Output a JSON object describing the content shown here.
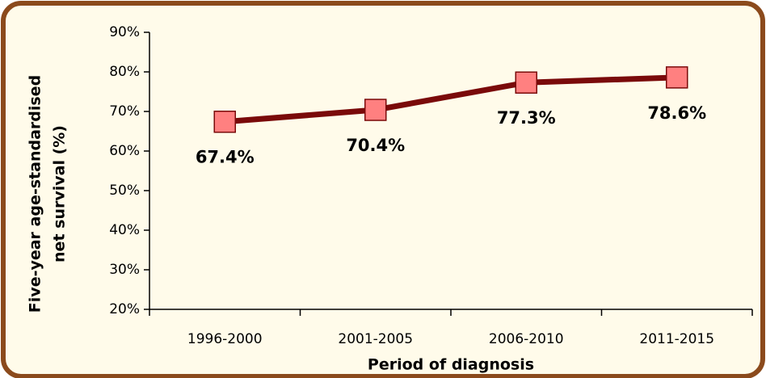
{
  "chart_data": {
    "type": "line",
    "x_label": "Period of diagnosis",
    "y_label": [
      "Five-year age-standardised",
      "net survival (%)"
    ],
    "categories": [
      "1996-2000",
      "2001-2005",
      "2006-2010",
      "2011-2015"
    ],
    "series": [
      {
        "color": "#7a0a0a",
        "marker_color": "#ff8080",
        "values": [
          67.4,
          70.4,
          77.3,
          78.6
        ],
        "value_labels": [
          "67.4%",
          "70.4%",
          "77.3%",
          "78.6%"
        ]
      }
    ],
    "ylim": [
      20,
      90
    ],
    "yticks": [
      {
        "value": 20,
        "label": "20%"
      },
      {
        "value": 30,
        "label": "30%"
      },
      {
        "value": 40,
        "label": "40%"
      },
      {
        "value": 50,
        "label": "50%"
      },
      {
        "value": 60,
        "label": "60%"
      },
      {
        "value": 70,
        "label": "70%"
      },
      {
        "value": 80,
        "label": "80%"
      },
      {
        "value": 90,
        "label": "90%"
      }
    ],
    "grid": false
  }
}
